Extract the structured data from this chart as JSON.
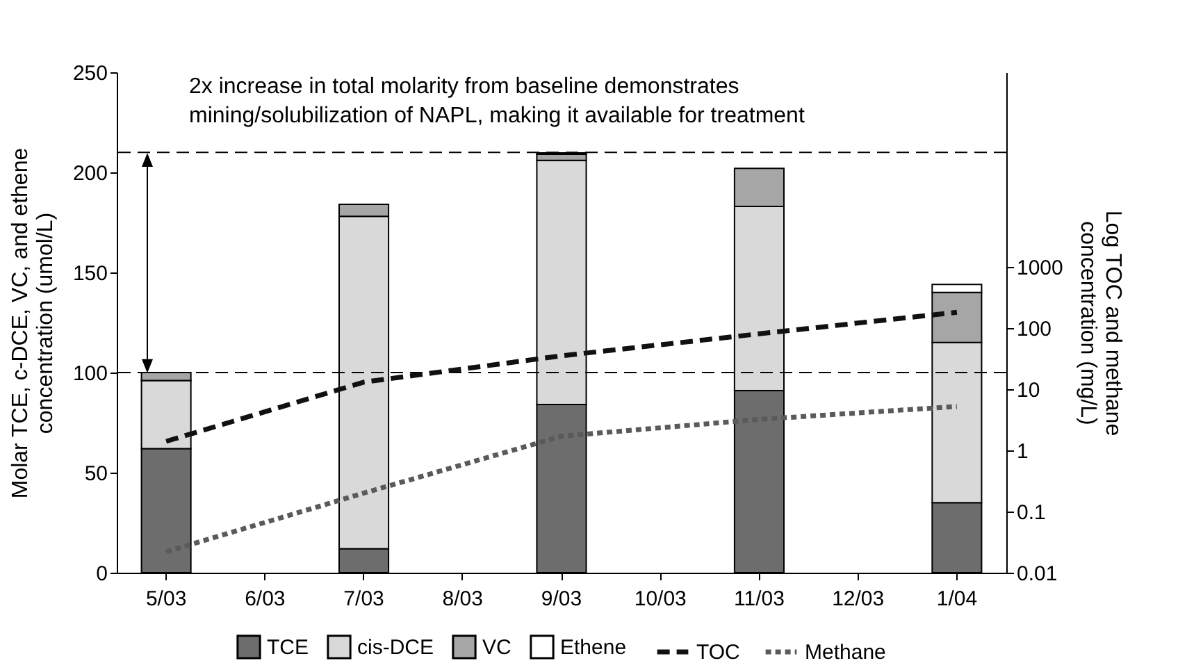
{
  "chart_data": {
    "type": "bar",
    "stacked": true,
    "xlabel": null,
    "ylabel": "Molar TCE, c-DCE, VC, and ethene\nconcentration (umol/L)",
    "y2label": "Log TOC and methane\nconcentration (mg/L)",
    "categories": [
      "5/03",
      "6/03",
      "7/03",
      "8/03",
      "9/03",
      "10/03",
      "11/03",
      "12/03",
      "1/04"
    ],
    "series": [
      {
        "name": "TCE",
        "color": "#6d6d6d",
        "values": [
          62,
          null,
          12,
          null,
          84,
          null,
          91,
          null,
          35
        ]
      },
      {
        "name": "cis-DCE",
        "color": "#d9d9d9",
        "values": [
          34,
          null,
          166,
          null,
          122,
          null,
          92,
          null,
          80
        ]
      },
      {
        "name": "VC",
        "color": "#a6a6a6",
        "values": [
          4,
          null,
          6,
          null,
          3,
          null,
          19,
          null,
          25
        ]
      },
      {
        "name": "Ethene",
        "color": "#ffffff",
        "values": [
          null,
          null,
          null,
          null,
          0.7,
          null,
          null,
          null,
          4
        ]
      },
      {
        "name": "TOC",
        "type": "line",
        "axis": "y2",
        "line_style": "dashed",
        "color": "#111111",
        "values": [
          1.4,
          null,
          13,
          null,
          35,
          null,
          80,
          null,
          180
        ]
      },
      {
        "name": "Methane",
        "type": "line",
        "axis": "y2",
        "line_style": "dotted",
        "color": "#5a5a5a",
        "values": [
          0.022,
          null,
          0.2,
          null,
          1.7,
          null,
          3.2,
          null,
          5.2
        ]
      }
    ],
    "ylim": [
      0,
      250
    ],
    "yticks": [
      0,
      50,
      100,
      150,
      200,
      250
    ],
    "y2lim": [
      0.01,
      1500000
    ],
    "y2ticks": [
      0.01,
      0.1,
      1,
      10,
      100,
      1000
    ],
    "log": "y2",
    "ref_lines": [
      {
        "axis": "y",
        "value": 100,
        "line_style": "dashed"
      },
      {
        "axis": "y",
        "value": 210,
        "line_style": "dashed"
      }
    ],
    "annotations": [
      "2x increase in total molarity from baseline demonstrates",
      "mining/solubilization of NAPL, making it available for treatment"
    ],
    "legend": "bottom",
    "grid": false
  }
}
